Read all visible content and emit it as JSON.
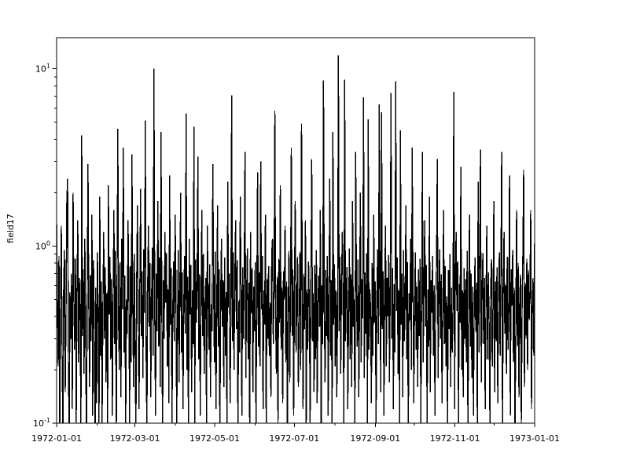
{
  "figure": {
    "background_color": "#ffffff",
    "axis_color": "#000000"
  },
  "chart_data": {
    "type": "line",
    "title": "",
    "xlabel": "",
    "ylabel": "field17",
    "yscale": "log",
    "ylim": [
      0.1,
      15
    ],
    "grid": "off",
    "legend": "none",
    "line_color": "#000000",
    "x_start": "1972-01-01",
    "x_end": "1973-01-01",
    "x_major_ticks": [
      {
        "label": "1972-01-01",
        "t": 0.0
      },
      {
        "label": "1972-03-01",
        "t": 0.16393
      },
      {
        "label": "1972-05-01",
        "t": 0.3306
      },
      {
        "label": "1972-07-01",
        "t": 0.49727
      },
      {
        "label": "1972-09-01",
        "t": 0.66667
      },
      {
        "label": "1972-11-01",
        "t": 0.83333
      },
      {
        "label": "1973-01-01",
        "t": 1.0
      }
    ],
    "x_minor_ticks": [
      0.0847,
      0.24863,
      0.4153,
      0.58197,
      0.74863,
      0.9153
    ],
    "y_major_ticks": [
      {
        "base": "10",
        "exp": "-1",
        "value": 0.1
      },
      {
        "base": "10",
        "exp": "0",
        "value": 1
      },
      {
        "base": "10",
        "exp": "1",
        "value": 10
      }
    ],
    "y_minor_values": [
      0.2,
      0.3,
      0.4,
      0.5,
      0.6,
      0.7,
      0.8,
      0.9,
      2,
      3,
      4,
      5,
      6,
      7,
      8,
      9
    ],
    "points_evenly_spaced_over_x_range": true,
    "values": [
      1.4,
      0.52,
      0.21,
      0.88,
      0.09,
      0.47,
      1.3,
      0.26,
      0.08,
      0.61,
      0.95,
      0.15,
      0.42,
      1.8,
      2.4,
      0.24,
      0.08,
      0.55,
      0.3,
      0.7,
      0.12,
      2.0,
      0.48,
      0.26,
      0.85,
      0.1,
      0.58,
      1.4,
      0.22,
      0.66,
      0.38,
      0.09,
      4.2,
      0.31,
      0.74,
      0.19,
      1.1,
      0.27,
      0.08,
      0.52,
      2.9,
      0.45,
      0.16,
      0.68,
      0.29,
      1.5,
      0.11,
      0.83,
      0.36,
      0.07,
      0.58,
      0.13,
      0.92,
      0.4,
      0.08,
      1.9,
      0.24,
      0.63,
      0.1,
      0.46,
      1.2,
      0.3,
      0.76,
      0.17,
      0.54,
      0.09,
      2.2,
      0.41,
      0.87,
      0.23,
      0.65,
      0.11,
      0.49,
      1.6,
      0.28,
      0.94,
      0.07,
      0.57,
      4.6,
      0.35,
      0.2,
      0.81,
      0.14,
      1.1,
      0.44,
      3.6,
      0.25,
      0.68,
      0.09,
      0.5,
      0.32,
      1.4,
      0.59,
      0.1,
      0.77,
      0.22,
      3.3,
      0.47,
      0.16,
      0.9,
      0.28,
      0.08,
      0.63,
      1.7,
      0.38,
      0.12,
      0.55,
      2.1,
      0.31,
      0.72,
      0.18,
      0.96,
      0.42,
      5.1,
      0.26,
      0.09,
      0.6,
      1.3,
      0.35,
      0.8,
      0.14,
      0.52,
      0.98,
      0.24,
      10.0,
      0.45,
      0.11,
      0.7,
      0.33,
      1.8,
      0.27,
      0.86,
      0.16,
      4.4,
      0.51,
      0.08,
      0.64,
      0.3,
      1.2,
      0.48,
      0.91,
      0.21,
      0.57,
      0.13,
      2.5,
      0.36,
      0.75,
      0.1,
      0.44,
      0.82,
      0.29,
      1.5,
      0.62,
      0.09,
      0.39,
      0.95,
      0.17,
      0.53,
      2.0,
      0.25,
      0.71,
      0.12,
      0.46,
      0.88,
      0.32,
      5.6,
      0.2,
      0.67,
      0.08,
      1.1,
      0.41,
      0.78,
      0.15,
      0.56,
      0.28,
      4.7,
      0.1,
      0.84,
      0.37,
      0.6,
      3.2,
      0.23,
      0.69,
      0.11,
      0.5,
      1.6,
      0.31,
      0.9,
      0.19,
      0.43,
      0.66,
      0.09,
      1.3,
      0.54,
      0.26,
      0.79,
      0.14,
      0.47,
      0.33,
      2.9,
      0.58,
      0.22,
      0.93,
      0.12,
      0.4,
      1.7,
      0.27,
      0.74,
      0.08,
      0.51,
      1.1,
      0.35,
      0.64,
      0.16,
      0.86,
      0.24,
      0.55,
      0.1,
      2.3,
      0.45,
      0.7,
      0.13,
      0.38,
      7.1,
      0.29,
      0.92,
      0.2,
      0.61,
      1.4,
      0.34,
      0.83,
      0.09,
      0.49,
      0.25,
      1.9,
      0.57,
      0.11,
      0.76,
      0.3,
      0.68,
      3.4,
      0.18,
      0.52,
      0.97,
      0.23,
      0.62,
      0.08,
      1.2,
      0.42,
      0.75,
      0.15,
      0.59,
      0.33,
      0.81,
      0.1,
      0.46,
      2.6,
      0.27,
      0.71,
      0.21,
      3.0,
      0.44,
      0.88,
      0.12,
      0.56,
      0.36,
      1.5,
      0.09,
      0.65,
      0.3,
      0.77,
      0.24,
      0.48,
      0.14,
      0.9,
      1.1,
      0.28,
      0.53,
      5.8,
      0.4,
      0.19,
      0.67,
      0.1,
      0.85,
      0.37,
      2.2,
      0.26,
      0.58,
      0.13,
      0.72,
      0.5,
      1.3,
      0.22,
      0.63,
      0.08,
      0.41,
      0.94,
      0.17,
      0.55,
      3.6,
      0.31,
      0.74,
      0.11,
      0.6,
      1.8,
      0.25,
      0.47,
      0.87,
      0.16,
      0.38,
      0.93,
      0.2,
      4.9,
      0.52,
      0.12,
      0.7,
      0.34,
      1.4,
      0.09,
      0.57,
      0.26,
      0.82,
      0.45,
      0.1,
      0.66,
      3.1,
      0.29,
      0.54,
      0.15,
      0.78,
      0.23,
      0.95,
      0.13,
      0.49,
      0.68,
      0.35,
      1.6,
      0.08,
      0.6,
      0.28,
      8.6,
      0.42,
      0.17,
      0.73,
      0.31,
      0.88,
      0.11,
      0.51,
      2.4,
      0.24,
      0.64,
      0.09,
      4.4,
      0.36,
      0.79,
      0.21,
      0.56,
      0.14,
      0.46,
      11.9,
      0.33,
      0.87,
      0.19,
      0.62,
      1.2,
      0.44,
      0.1,
      8.7,
      0.29,
      0.55,
      0.76,
      0.12,
      0.41,
      0.97,
      0.23,
      0.69,
      0.16,
      1.8,
      0.35,
      0.5,
      0.08,
      3.4,
      0.59,
      0.27,
      0.84,
      0.14,
      0.48,
      2.0,
      0.22,
      0.65,
      0.39,
      6.9,
      0.18,
      0.71,
      0.32,
      0.91,
      0.1,
      5.2,
      0.26,
      0.57,
      0.45,
      0.13,
      0.8,
      0.24,
      1.5,
      0.37,
      0.63,
      0.09,
      0.52,
      0.96,
      0.28,
      6.3,
      0.47,
      0.15,
      5.7,
      0.34,
      0.72,
      0.11,
      0.58,
      1.3,
      0.21,
      0.66,
      0.4,
      0.89,
      0.17,
      0.53,
      7.3,
      0.3,
      0.75,
      0.12,
      0.61,
      0.25,
      8.5,
      0.43,
      0.86,
      0.19,
      0.56,
      0.1,
      4.5,
      0.36,
      0.7,
      0.14,
      0.95,
      0.29,
      0.49,
      1.7,
      0.23,
      0.81,
      0.08,
      0.54,
      0.38,
      1.1,
      0.2,
      3.6,
      0.67,
      0.13,
      0.45,
      0.92,
      0.26,
      0.59,
      0.16,
      0.74,
      0.31,
      0.85,
      0.1,
      0.5,
      3.4,
      0.22,
      0.63,
      1.4,
      0.35,
      0.78,
      0.09,
      0.57,
      0.27,
      1.9,
      0.15,
      0.64,
      0.42,
      0.88,
      0.24,
      0.6,
      0.11,
      0.46,
      0.83,
      3.1,
      0.18,
      0.55,
      0.96,
      0.3,
      0.69,
      0.13,
      0.4,
      1.6,
      0.28,
      0.77,
      0.21,
      0.52,
      0.09,
      0.73,
      0.34,
      0.9,
      0.16,
      0.58,
      0.25,
      0.47,
      7.4,
      0.12,
      0.68,
      1.2,
      0.43,
      0.82,
      0.1,
      0.61,
      0.37,
      2.8,
      0.2,
      0.56,
      0.14,
      0.75,
      0.3,
      0.65,
      0.22,
      0.94,
      0.08,
      0.51,
      1.5,
      0.27,
      0.7,
      0.18,
      0.59,
      0.11,
      0.44,
      0.86,
      0.33,
      0.62,
      0.09,
      2.3,
      0.25,
      0.79,
      3.5,
      0.17,
      0.53,
      0.91,
      0.28,
      0.66,
      0.12,
      0.48,
      1.3,
      0.23,
      0.71,
      0.36,
      0.1,
      0.57,
      0.84,
      0.21,
      0.45,
      1.8,
      0.15,
      0.63,
      0.29,
      0.76,
      0.13,
      0.5,
      0.92,
      0.24,
      0.68,
      3.4,
      0.09,
      0.55,
      1.2,
      0.32,
      0.6,
      0.19,
      0.87,
      0.26,
      0.41,
      2.5,
      0.11,
      0.74,
      0.46,
      0.95,
      0.22,
      0.58,
      0.08,
      0.35,
      1.6,
      0.27,
      0.8,
      0.14,
      0.52,
      0.69,
      0.1,
      0.44,
      0.91,
      2.7,
      0.16,
      0.62,
      0.3,
      0.85,
      0.2,
      0.73,
      0.38,
      0.56,
      1.6,
      0.12,
      0.49,
      0.66,
      0.24,
      1.1
    ]
  }
}
